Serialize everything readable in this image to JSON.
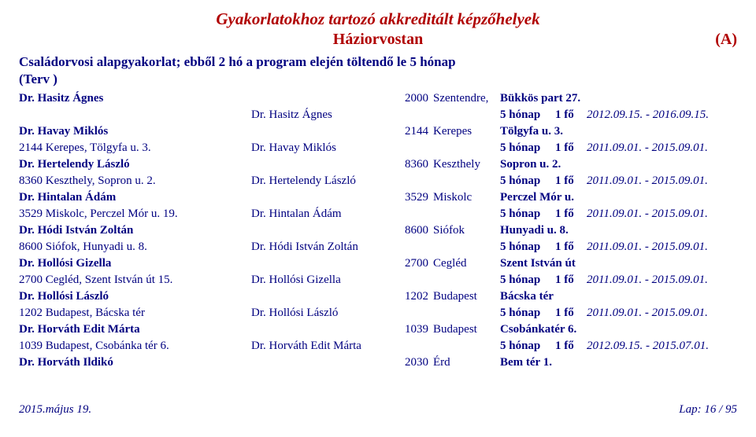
{
  "theme": {
    "text_color": "#000080",
    "accent_color": "#b00000",
    "background": "#ffffff",
    "font_family": "Times New Roman"
  },
  "header": {
    "title_main": "Gyakorlatokhoz tartozó akkreditált képzőhelyek",
    "title_sub": "Háziorvostan",
    "code": "(A)"
  },
  "section": {
    "heading": "Családorvosi alapgyakorlat; ebből 2 hó a program elején töltendő le 5 hónap",
    "terv": "(Terv )"
  },
  "entries": [
    {
      "name_bold": "Dr. Hasitz Ágnes",
      "zip": "2000",
      "city": "Szentendre,",
      "addr_bold": "Bükkös part 27.",
      "line2_left": "",
      "name2": "Dr. Hasitz Ágnes",
      "duration": "5 hónap",
      "capacity": "1 fő",
      "date_from": "2012.09.15.",
      "date_to": "2016.09.15."
    },
    {
      "name_bold": "Dr. Havay Miklós",
      "zip": "2144",
      "city": "Kerepes",
      "addr_bold": "Tölgyfa u. 3.",
      "line2_left": "2144 Kerepes, Tölgyfa u. 3.",
      "name2": "Dr. Havay Miklós",
      "duration": "5 hónap",
      "capacity": "1 fő",
      "date_from": "2011.09.01.",
      "date_to": "2015.09.01."
    },
    {
      "name_bold": "Dr. Hertelendy László",
      "zip": "8360",
      "city": "Keszthely",
      "addr_bold": "Sopron u. 2.",
      "line2_left": "8360 Keszthely, Sopron u. 2.",
      "name2": "Dr. Hertelendy László",
      "duration": "5 hónap",
      "capacity": "1 fő",
      "date_from": "2011.09.01.",
      "date_to": "2015.09.01."
    },
    {
      "name_bold": "Dr. Hintalan Ádám",
      "zip": "3529",
      "city": "Miskolc",
      "addr_bold": "Perczel Mór u.",
      "line2_left": "3529 Miskolc, Perczel Mór u. 19.",
      "name2": "Dr. Hintalan Ádám",
      "duration": "5 hónap",
      "capacity": "1 fő",
      "date_from": "2011.09.01.",
      "date_to": "2015.09.01."
    },
    {
      "name_bold": "Dr. Hódi István Zoltán",
      "zip": "8600",
      "city": "Siófok",
      "addr_bold": "Hunyadi u. 8.",
      "line2_left": "8600 Siófok, Hunyadi u. 8.",
      "name2": "Dr. Hódi István Zoltán",
      "duration": "5 hónap",
      "capacity": "1 fő",
      "date_from": "2011.09.01.",
      "date_to": "2015.09.01."
    },
    {
      "name_bold": "Dr. Hollósi Gizella",
      "zip": "2700",
      "city": "Cegléd",
      "addr_bold": "Szent István út",
      "line2_left": "2700 Cegléd, Szent István út 15.",
      "name2": "Dr. Hollósi Gizella",
      "duration": "5 hónap",
      "capacity": "1 fő",
      "date_from": "2011.09.01.",
      "date_to": "2015.09.01."
    },
    {
      "name_bold": "Dr. Hollósi László",
      "zip": "1202",
      "city": "Budapest",
      "addr_bold": "Bácska tér",
      "line2_left": "1202 Budapest, Bácska tér",
      "name2": "Dr. Hollósi László",
      "duration": "5 hónap",
      "capacity": "1 fő",
      "date_from": "2011.09.01.",
      "date_to": "2015.09.01."
    },
    {
      "name_bold": "Dr. Horváth Edit Márta",
      "zip": "1039",
      "city": "Budapest",
      "addr_bold": "Csobánkatér 6.",
      "line2_left": "1039 Budapest, Csobánka tér 6.",
      "name2": "Dr. Horváth Edit Márta",
      "duration": "5 hónap",
      "capacity": "1 fő",
      "date_from": "2012.09.15.",
      "date_to": "2015.07.01."
    },
    {
      "name_bold": "Dr. Horváth Ildikó",
      "zip": "2030",
      "city": "Érd",
      "addr_bold": "Bem tér 1.",
      "line2_left": null,
      "name2": null,
      "duration": null,
      "capacity": null,
      "date_from": null,
      "date_to": null
    }
  ],
  "footer": {
    "left": "2015.május 19.",
    "right": "Lap: 16 / 95"
  }
}
